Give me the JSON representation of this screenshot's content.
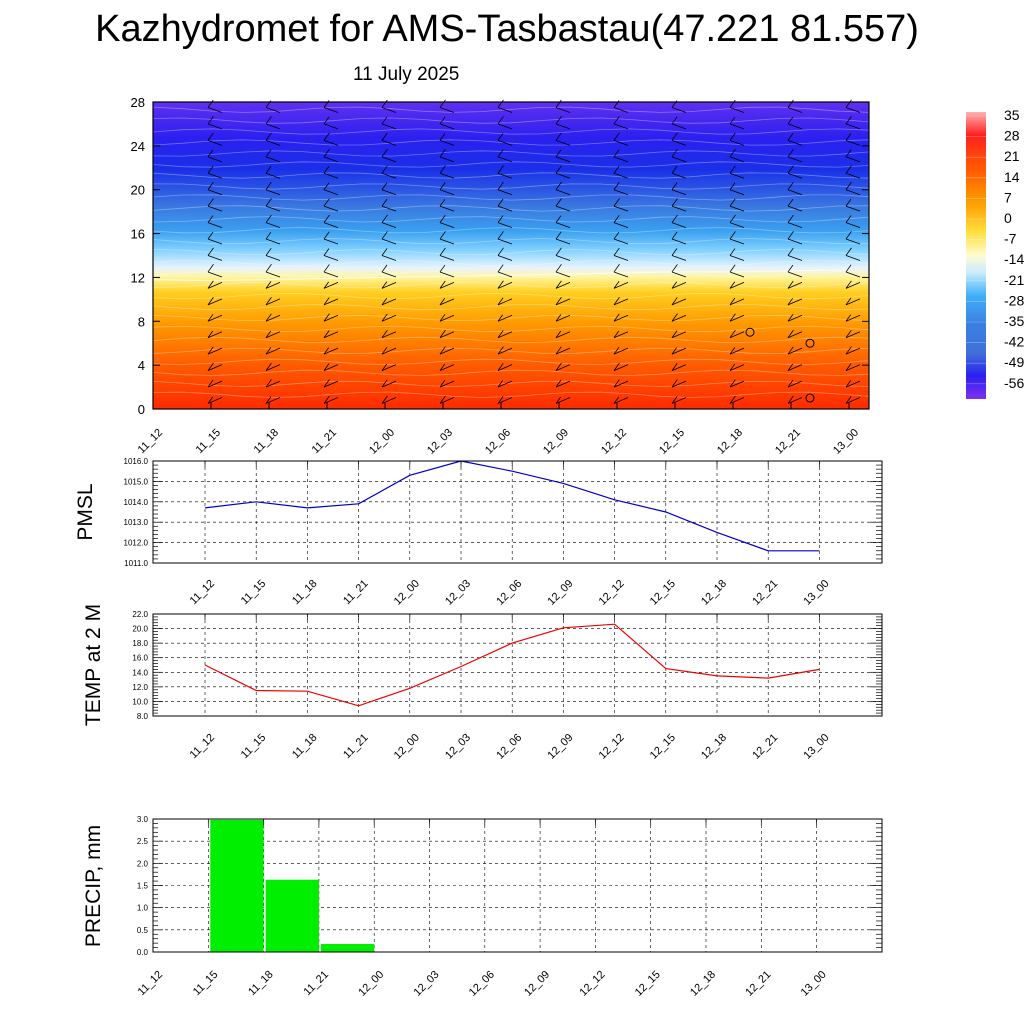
{
  "header": {
    "title": "Kazhydromet for AMS-Tasbastau(47.221 81.557)",
    "subtitle": "11 July 2025"
  },
  "chart_data": [
    {
      "type": "heatmap",
      "name": "upper-air-cross-section",
      "time_labels": [
        "11_12",
        "11_15",
        "11_18",
        "11_21",
        "12_00",
        "12_03",
        "12_06",
        "12_09",
        "12_12",
        "12_15",
        "12_18",
        "12_21",
        "13_00"
      ],
      "y_ticks": [
        "0",
        "4",
        "8",
        "12",
        "16",
        "20",
        "24",
        "28"
      ],
      "ylim": [
        0,
        28
      ],
      "colorbar_labels": [
        "35",
        "28",
        "21",
        "14",
        "7",
        "0",
        "-7",
        "-14",
        "-21",
        "-28",
        "-35",
        "-42",
        "-49",
        "-56"
      ],
      "freezing_level": [
        11.8,
        11.7,
        11.8,
        11.9,
        12.0,
        12.1,
        12.2,
        12.3,
        12.4,
        12.5,
        12.5,
        12.6,
        12.7
      ],
      "wind_barbs": "yes",
      "grid": false
    },
    {
      "type": "line",
      "name": "pmsl",
      "ylabel": "PMSL",
      "categories": [
        "11_12",
        "11_15",
        "11_18",
        "11_21",
        "12_00",
        "12_03",
        "12_06",
        "12_09",
        "12_12",
        "12_15",
        "12_18",
        "12_21",
        "13_00"
      ],
      "y_ticks": [
        "1011.0",
        "1012.0",
        "1013.0",
        "1014.0",
        "1015.0",
        "1016.0"
      ],
      "ylim": [
        1011.0,
        1016.0
      ],
      "values": [
        1013.7,
        1014.0,
        1013.7,
        1013.9,
        1015.3,
        1016.0,
        1015.5,
        1014.9,
        1014.1,
        1013.5,
        1012.5,
        1011.6,
        1011.6
      ],
      "color": "#0000cc",
      "grid": true
    },
    {
      "type": "line",
      "name": "temp-2m",
      "ylabel": "TEMP at 2 M",
      "categories": [
        "11_12",
        "11_15",
        "11_18",
        "11_21",
        "12_00",
        "12_03",
        "12_06",
        "12_09",
        "12_12",
        "12_15",
        "12_18",
        "12_21",
        "13_00"
      ],
      "y_ticks": [
        "8.0",
        "10.0",
        "12.0",
        "14.0",
        "16.0",
        "18.0",
        "20.0",
        "22.0"
      ],
      "ylim": [
        8.0,
        22.0
      ],
      "values": [
        15.0,
        11.5,
        11.4,
        9.4,
        11.8,
        14.8,
        18.0,
        20.1,
        20.6,
        14.5,
        13.5,
        13.2,
        14.4
      ],
      "color": "#ee0000",
      "grid": true
    },
    {
      "type": "bar",
      "name": "precip",
      "ylabel": "PRECIP, mm",
      "categories": [
        "11_12",
        "11_15",
        "11_18",
        "11_21",
        "12_00",
        "12_03",
        "12_06",
        "12_09",
        "12_12",
        "12_15",
        "12_18",
        "12_21",
        "13_00"
      ],
      "y_ticks": [
        "0.0",
        "0.5",
        "1.0",
        "1.5",
        "2.0",
        "2.5",
        "3.0"
      ],
      "ylim": [
        0.0,
        3.0
      ],
      "values": [
        0,
        2.98,
        1.63,
        0.18,
        0,
        0,
        0,
        0,
        0,
        0,
        0,
        0,
        0
      ],
      "color": "#00ee00",
      "grid": true
    }
  ]
}
